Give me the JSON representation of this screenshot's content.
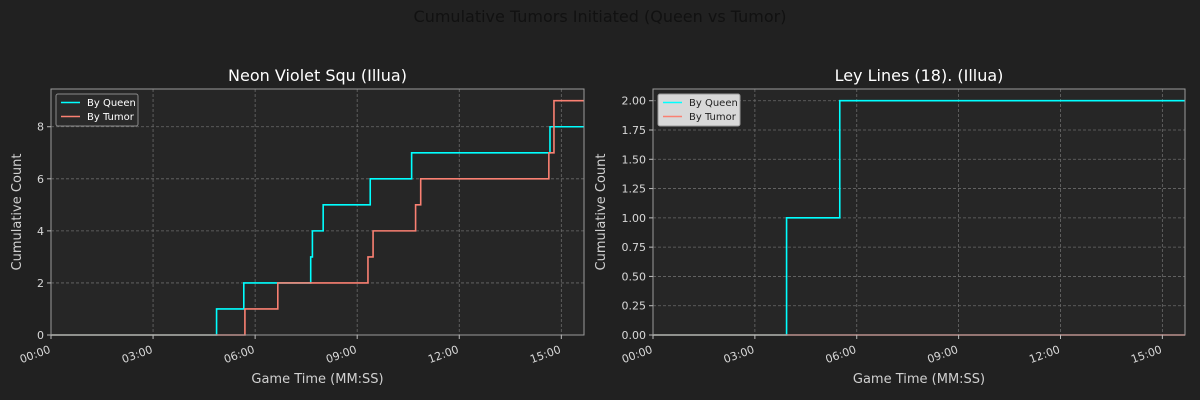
{
  "figure": {
    "title": "Cumulative Tumors Initiated (Queen vs Tumor)",
    "background": "#212121",
    "axes_background": "#262626",
    "queen_color": "#00ffff",
    "tumor_color": "#fa8072"
  },
  "chart_data": [
    {
      "type": "line",
      "step": "post",
      "title": "Neon Violet Squ (Illua)",
      "xlabel": "Game Time (MM:SS)",
      "ylabel": "Cumulative Count",
      "x_unit": "seconds",
      "xlim": [
        0,
        940
      ],
      "ylim": [
        0,
        9.45
      ],
      "xticks": [
        0,
        180,
        360,
        540,
        720,
        900
      ],
      "xtick_labels": [
        "00:00",
        "03:00",
        "06:00",
        "09:00",
        "12:00",
        "15:00"
      ],
      "yticks": [
        0,
        2,
        4,
        6,
        8
      ],
      "ytick_labels": [
        "0",
        "2",
        "4",
        "6",
        "8"
      ],
      "grid": true,
      "legend": {
        "position": "top-left",
        "style": "dark"
      },
      "series": [
        {
          "name": "By Queen",
          "color": "#00ffff",
          "points": [
            [
              0,
              0
            ],
            [
              292,
              0
            ],
            [
              292,
              1
            ],
            [
              340,
              1
            ],
            [
              340,
              2
            ],
            [
              458,
              2
            ],
            [
              458,
              3
            ],
            [
              461,
              3
            ],
            [
              461,
              4
            ],
            [
              480,
              4
            ],
            [
              480,
              5
            ],
            [
              563,
              5
            ],
            [
              563,
              6
            ],
            [
              636,
              6
            ],
            [
              636,
              7
            ],
            [
              880,
              7
            ],
            [
              880,
              8
            ],
            [
              940,
              8
            ]
          ]
        },
        {
          "name": "By Tumor",
          "color": "#fa8072",
          "points": [
            [
              0,
              0
            ],
            [
              342,
              0
            ],
            [
              342,
              1
            ],
            [
              400,
              1
            ],
            [
              400,
              2
            ],
            [
              559,
              2
            ],
            [
              559,
              3
            ],
            [
              568,
              3
            ],
            [
              568,
              4
            ],
            [
              643,
              4
            ],
            [
              643,
              5
            ],
            [
              652,
              5
            ],
            [
              652,
              6
            ],
            [
              878,
              6
            ],
            [
              878,
              7
            ],
            [
              887,
              7
            ],
            [
              887,
              9
            ],
            [
              940,
              9
            ]
          ]
        }
      ]
    },
    {
      "type": "line",
      "step": "post",
      "title": "Ley Lines (18). (Illua)",
      "xlabel": "Game Time (MM:SS)",
      "ylabel": "Cumulative Count",
      "x_unit": "seconds",
      "xlim": [
        0,
        940
      ],
      "ylim": [
        0,
        2.1
      ],
      "xticks": [
        0,
        180,
        360,
        540,
        720,
        900
      ],
      "xtick_labels": [
        "00:00",
        "03:00",
        "06:00",
        "09:00",
        "12:00",
        "15:00"
      ],
      "yticks": [
        0,
        0.25,
        0.5,
        0.75,
        1.0,
        1.25,
        1.5,
        1.75,
        2.0
      ],
      "ytick_labels": [
        "0.00",
        "0.25",
        "0.50",
        "0.75",
        "1.00",
        "1.25",
        "1.50",
        "1.75",
        "2.00"
      ],
      "grid": true,
      "legend": {
        "position": "top-left",
        "style": "light"
      },
      "series": [
        {
          "name": "By Queen",
          "color": "#00ffff",
          "points": [
            [
              0,
              0
            ],
            [
              236,
              0
            ],
            [
              236,
              1
            ],
            [
              330,
              1
            ],
            [
              330,
              2
            ],
            [
              940,
              2
            ]
          ]
        },
        {
          "name": "By Tumor",
          "color": "#fa8072",
          "points": [
            [
              0,
              0
            ],
            [
              940,
              0
            ]
          ]
        }
      ]
    }
  ]
}
